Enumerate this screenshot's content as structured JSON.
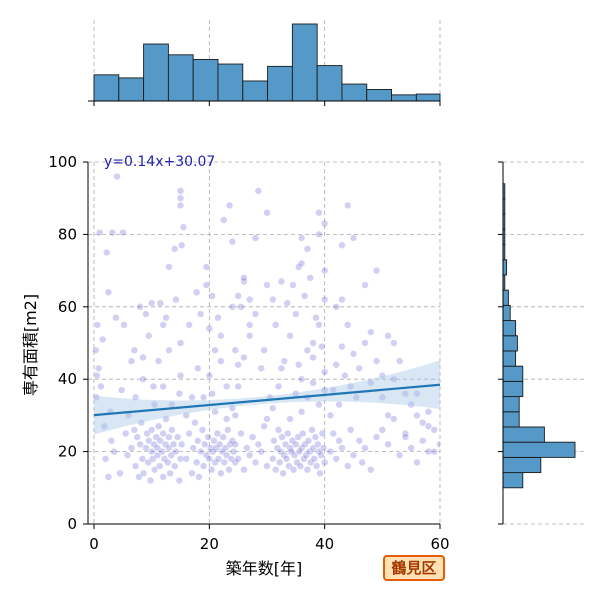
{
  "chart_data": {
    "type": "scatter",
    "xlabel": "築年数[年]",
    "ylabel": "専有面積[m2]",
    "xlim": [
      0,
      60
    ],
    "ylim": [
      0,
      100
    ],
    "x_ticks": [
      "0",
      "20",
      "40",
      "60"
    ],
    "y_ticks": [
      "0",
      "20",
      "40",
      "60",
      "80",
      "100"
    ],
    "grid": true,
    "regression": {
      "label": "y=0.14x+30.07",
      "slope": 0.14,
      "intercept": 30.07,
      "x_range": [
        0,
        60
      ]
    },
    "badge": "鶴見区",
    "colors": {
      "points": "#2a2ac8",
      "regression_line": "#1f77b4",
      "confidence_band": "#aac8e6",
      "histogram_fill": "#5599c8",
      "histogram_edge": "#1a1a1a",
      "badge_fill": "#ffe2b3",
      "badge_border": "#e65c00",
      "badge_text": "#a53a00"
    },
    "marginal_x_histogram": {
      "bin_edges": [
        0,
        4.3,
        8.6,
        12.9,
        17.2,
        21.5,
        25.8,
        30.1,
        34.4,
        38.7,
        43,
        47.3,
        51.6,
        55.9,
        60
      ],
      "counts": [
        34,
        30,
        74,
        60,
        54,
        48,
        26,
        45,
        100,
        46,
        22,
        15,
        8,
        9
      ]
    },
    "marginal_y_histogram": {
      "bin_edges": [
        10,
        14.2,
        18.4,
        22.6,
        26.8,
        31,
        35.2,
        39.4,
        43.6,
        47.8,
        52,
        56.2,
        60.4,
        64.6,
        68.8,
        73,
        77.2,
        81.4,
        85.6,
        89.8,
        94,
        98.2
      ],
      "counts": [
        11,
        21,
        40,
        23,
        9,
        9,
        11,
        11,
        7,
        8,
        7,
        4,
        3,
        1,
        2,
        1,
        1,
        1,
        1,
        1,
        0
      ]
    },
    "points": [
      [
        0.5,
        41
      ],
      [
        0.3,
        48
      ],
      [
        0.8,
        43
      ],
      [
        0.6,
        55
      ],
      [
        1.2,
        38
      ],
      [
        1.5,
        51
      ],
      [
        0.4,
        35
      ],
      [
        2,
        18
      ],
      [
        2.5,
        13
      ],
      [
        3,
        23
      ],
      [
        2.8,
        31
      ],
      [
        3.5,
        20
      ],
      [
        2.2,
        75
      ],
      [
        1,
        80.5
      ],
      [
        3.2,
        80.5
      ],
      [
        5,
        80.5
      ],
      [
        2.5,
        64
      ],
      [
        4,
        96
      ],
      [
        3.8,
        57
      ],
      [
        1.8,
        27
      ],
      [
        4.5,
        14
      ],
      [
        5.5,
        25
      ],
      [
        6,
        30
      ],
      [
        5.2,
        55
      ],
      [
        6.5,
        45
      ],
      [
        4.8,
        37
      ],
      [
        5.8,
        19
      ],
      [
        6.5,
        21
      ],
      [
        7,
        26
      ],
      [
        7.2,
        16
      ],
      [
        7.5,
        24
      ],
      [
        7.8,
        13
      ],
      [
        8,
        22
      ],
      [
        8.2,
        28
      ],
      [
        8.4,
        18
      ],
      [
        8.6,
        14
      ],
      [
        9,
        21
      ],
      [
        9.2,
        25
      ],
      [
        9.4,
        17
      ],
      [
        9.5,
        23
      ],
      [
        9.8,
        12
      ],
      [
        10,
        20
      ],
      [
        10,
        26
      ],
      [
        10.2,
        18
      ],
      [
        10.4,
        22
      ],
      [
        10.5,
        15
      ],
      [
        10.8,
        24
      ],
      [
        11,
        19
      ],
      [
        11,
        21
      ],
      [
        11.2,
        27
      ],
      [
        11.4,
        16
      ],
      [
        11.5,
        23
      ],
      [
        11.8,
        20
      ],
      [
        12,
        13
      ],
      [
        12,
        25
      ],
      [
        12.2,
        18
      ],
      [
        12.4,
        22
      ],
      [
        12.5,
        29
      ],
      [
        12.8,
        17
      ],
      [
        13,
        21
      ],
      [
        13,
        24
      ],
      [
        13.2,
        14
      ],
      [
        13.4,
        19
      ],
      [
        13.5,
        26
      ],
      [
        13.8,
        22
      ],
      [
        14,
        16
      ],
      [
        14.2,
        20
      ],
      [
        14.5,
        24
      ],
      [
        14.8,
        12
      ],
      [
        15,
        18
      ],
      [
        15.2,
        22
      ],
      [
        7.2,
        35
      ],
      [
        8.5,
        40
      ],
      [
        9.5,
        52
      ],
      [
        10.3,
        38
      ],
      [
        11.2,
        45
      ],
      [
        12.5,
        57
      ],
      [
        13.5,
        33
      ],
      [
        14.2,
        62
      ],
      [
        15,
        41
      ],
      [
        8,
        60
      ],
      [
        9,
        58
      ],
      [
        11.5,
        61
      ],
      [
        13,
        48
      ],
      [
        14.8,
        36
      ],
      [
        10,
        61
      ],
      [
        12,
        55
      ],
      [
        15,
        50
      ],
      [
        8.5,
        46
      ],
      [
        12,
        38
      ],
      [
        14,
        76
      ],
      [
        13,
        71
      ],
      [
        15.2,
        77
      ],
      [
        15,
        92
      ],
      [
        15,
        90
      ],
      [
        15.5,
        82
      ],
      [
        15,
        88
      ],
      [
        7,
        48
      ],
      [
        10.5,
        33
      ],
      [
        16,
        30
      ],
      [
        17,
        35
      ],
      [
        18,
        43
      ],
      [
        16.5,
        55
      ],
      [
        17.8,
        64
      ],
      [
        16,
        18
      ],
      [
        16.5,
        25
      ],
      [
        17,
        14
      ],
      [
        17.2,
        21
      ],
      [
        17.5,
        28
      ],
      [
        17.8,
        17
      ],
      [
        18,
        23
      ],
      [
        18.2,
        13
      ],
      [
        18.5,
        20
      ],
      [
        18.8,
        26
      ],
      [
        19,
        16
      ],
      [
        19.2,
        22
      ],
      [
        19.5,
        19
      ],
      [
        19.8,
        24
      ],
      [
        20,
        18
      ],
      [
        20.2,
        21
      ],
      [
        20.4,
        15
      ],
      [
        20.6,
        20
      ],
      [
        20.8,
        23
      ],
      [
        21,
        17
      ],
      [
        21.2,
        21
      ],
      [
        21.4,
        25
      ],
      [
        21.6,
        18
      ],
      [
        21.8,
        22
      ],
      [
        22,
        14
      ],
      [
        22.2,
        20
      ],
      [
        22.4,
        24
      ],
      [
        22.6,
        17
      ],
      [
        22.8,
        21
      ],
      [
        23,
        19
      ],
      [
        23.2,
        26
      ],
      [
        23.4,
        15
      ],
      [
        23.6,
        22
      ],
      [
        23.8,
        18
      ],
      [
        24,
        23
      ],
      [
        24.2,
        20
      ],
      [
        24.5,
        17
      ],
      [
        19,
        35
      ],
      [
        20,
        41
      ],
      [
        21,
        48
      ],
      [
        22,
        52
      ],
      [
        23,
        38
      ],
      [
        24,
        60
      ],
      [
        25,
        44
      ],
      [
        19.5,
        71
      ],
      [
        20.5,
        63
      ],
      [
        21.5,
        57
      ],
      [
        22.5,
        84
      ],
      [
        23.5,
        88
      ],
      [
        24,
        78
      ],
      [
        25,
        63
      ],
      [
        26,
        67
      ],
      [
        27,
        62
      ],
      [
        28,
        79
      ],
      [
        18.5,
        58
      ],
      [
        20,
        54
      ],
      [
        24.5,
        30
      ],
      [
        19.5,
        66
      ],
      [
        22,
        45
      ],
      [
        20.5,
        36
      ],
      [
        21,
        31
      ],
      [
        23,
        29
      ],
      [
        24.5,
        22
      ],
      [
        25,
        18
      ],
      [
        25.5,
        25
      ],
      [
        26,
        15
      ],
      [
        26.5,
        21
      ],
      [
        27,
        19
      ],
      [
        27.5,
        24
      ],
      [
        28,
        17
      ],
      [
        28.5,
        22
      ],
      [
        29,
        20
      ],
      [
        29.5,
        27
      ],
      [
        30,
        16
      ],
      [
        24,
        32
      ],
      [
        25,
        38
      ],
      [
        26,
        46
      ],
      [
        27,
        52
      ],
      [
        28,
        58
      ],
      [
        29,
        43
      ],
      [
        30,
        66
      ],
      [
        31,
        62
      ],
      [
        29.5,
        48
      ],
      [
        30.5,
        35
      ],
      [
        28.5,
        92
      ],
      [
        30,
        86
      ],
      [
        27,
        55
      ],
      [
        26,
        68
      ],
      [
        25.5,
        60
      ],
      [
        24.5,
        48
      ],
      [
        30,
        29
      ],
      [
        31,
        18
      ],
      [
        31.2,
        23
      ],
      [
        31.5,
        15
      ],
      [
        31.8,
        21
      ],
      [
        32,
        26
      ],
      [
        32.2,
        17
      ],
      [
        32.4,
        20
      ],
      [
        32.6,
        24
      ],
      [
        32.8,
        14
      ],
      [
        33,
        19
      ],
      [
        33.2,
        22
      ],
      [
        33.4,
        18
      ],
      [
        33.6,
        25
      ],
      [
        33.8,
        16
      ],
      [
        34,
        21
      ],
      [
        34.2,
        20
      ],
      [
        34.4,
        23
      ],
      [
        34.6,
        15
      ],
      [
        34.8,
        19
      ],
      [
        35,
        22
      ],
      [
        35.2,
        17
      ],
      [
        35.4,
        24
      ],
      [
        35.6,
        20
      ],
      [
        35.8,
        16
      ],
      [
        36,
        21
      ],
      [
        36.2,
        25
      ],
      [
        36.4,
        18
      ],
      [
        36.6,
        22
      ],
      [
        36.8,
        19
      ],
      [
        37,
        15
      ],
      [
        37.2,
        23
      ],
      [
        37.4,
        20
      ],
      [
        37.6,
        17
      ],
      [
        37.8,
        26
      ],
      [
        38,
        21
      ],
      [
        38.2,
        18
      ],
      [
        38.4,
        24
      ],
      [
        38.6,
        16
      ],
      [
        38.8,
        22
      ],
      [
        39,
        20
      ],
      [
        39.2,
        14
      ],
      [
        39.4,
        19
      ],
      [
        39.6,
        25
      ],
      [
        39.8,
        21
      ],
      [
        40,
        17
      ],
      [
        31,
        32
      ],
      [
        32,
        38
      ],
      [
        33,
        45
      ],
      [
        34,
        52
      ],
      [
        35,
        58
      ],
      [
        36,
        40
      ],
      [
        37,
        35
      ],
      [
        38,
        46
      ],
      [
        39,
        55
      ],
      [
        40,
        42
      ],
      [
        33.5,
        61
      ],
      [
        34.5,
        66
      ],
      [
        35.5,
        71
      ],
      [
        36.5,
        63
      ],
      [
        37.5,
        68
      ],
      [
        38.5,
        57
      ],
      [
        39.5,
        49
      ],
      [
        31.5,
        55
      ],
      [
        32.5,
        43
      ],
      [
        34,
        29
      ],
      [
        35,
        36
      ],
      [
        36,
        31
      ],
      [
        37,
        48
      ],
      [
        38,
        39
      ],
      [
        39,
        33
      ],
      [
        40,
        37
      ],
      [
        36,
        72
      ],
      [
        37,
        76
      ],
      [
        39,
        80
      ],
      [
        40,
        62
      ],
      [
        38,
        50
      ],
      [
        35.5,
        44
      ],
      [
        32.5,
        67
      ],
      [
        40,
        70
      ],
      [
        40,
        83
      ],
      [
        39,
        86
      ],
      [
        36,
        79
      ],
      [
        41,
        20
      ],
      [
        41.5,
        25
      ],
      [
        42,
        18
      ],
      [
        42.5,
        23
      ],
      [
        43,
        21
      ],
      [
        44,
        16
      ],
      [
        44.5,
        26
      ],
      [
        45,
        19
      ],
      [
        46,
        23
      ],
      [
        46.5,
        17
      ],
      [
        47,
        21
      ],
      [
        48,
        15
      ],
      [
        49,
        24
      ],
      [
        41,
        30
      ],
      [
        41.5,
        37
      ],
      [
        42,
        44
      ],
      [
        42.5,
        33
      ],
      [
        43,
        49
      ],
      [
        43.5,
        41
      ],
      [
        44,
        55
      ],
      [
        44.5,
        38
      ],
      [
        45,
        47
      ],
      [
        45.5,
        35
      ],
      [
        46,
        43
      ],
      [
        47,
        50
      ],
      [
        48,
        39
      ],
      [
        49,
        45
      ],
      [
        50,
        41
      ],
      [
        44,
        88
      ],
      [
        43,
        77
      ],
      [
        45,
        79
      ],
      [
        42,
        60
      ],
      [
        47,
        66
      ],
      [
        48,
        53
      ],
      [
        49,
        70
      ],
      [
        43,
        62
      ],
      [
        50,
        26
      ],
      [
        51,
        22
      ],
      [
        52,
        29
      ],
      [
        53,
        19
      ],
      [
        54,
        25
      ],
      [
        55,
        21
      ],
      [
        56,
        17
      ],
      [
        57,
        23
      ],
      [
        58,
        27
      ],
      [
        59,
        20
      ],
      [
        50,
        35
      ],
      [
        51,
        30
      ],
      [
        52,
        40
      ],
      [
        53,
        45
      ],
      [
        54,
        24
      ],
      [
        55,
        33
      ],
      [
        56,
        36
      ],
      [
        57,
        28
      ],
      [
        58,
        31
      ],
      [
        59,
        26
      ],
      [
        60,
        22
      ],
      [
        51,
        52
      ],
      [
        52,
        50
      ],
      [
        54,
        36
      ],
      [
        56,
        30
      ],
      [
        58,
        20
      ]
    ]
  }
}
